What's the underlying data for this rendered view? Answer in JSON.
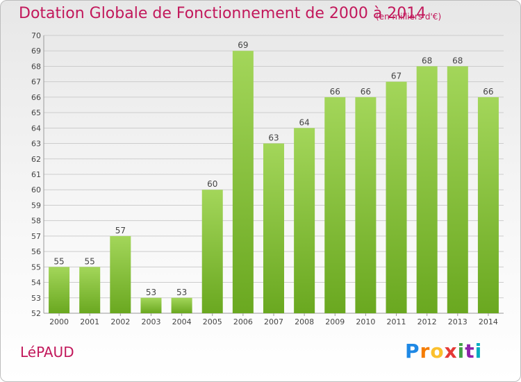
{
  "header": {
    "title": "Dotation Globale de Fonctionnement de 2000 à 2014",
    "unit": "(en milliers d'€)"
  },
  "footer": {
    "commune": "LéPAUD",
    "logo_letters": [
      "P",
      "r",
      "o",
      "x",
      "i",
      "t",
      "i"
    ]
  },
  "colors": {
    "bar_light": "#a3d65a",
    "bar_dark": "#6aa820",
    "title": "#c2185b",
    "grid": "#cccccc"
  },
  "chart_data": {
    "type": "bar",
    "title": "Dotation Globale de Fonctionnement de 2000 à 2014",
    "subtitle": "(en milliers d'€)",
    "xlabel": "",
    "ylabel": "",
    "categories": [
      "2000",
      "2001",
      "2002",
      "2003",
      "2004",
      "2005",
      "2006",
      "2007",
      "2008",
      "2009",
      "2010",
      "2011",
      "2012",
      "2013",
      "2014"
    ],
    "values": [
      55,
      55,
      57,
      53,
      53,
      60,
      69,
      63,
      64,
      66,
      66,
      67,
      68,
      68,
      66
    ],
    "ylim": [
      52,
      70
    ],
    "yticks": [
      52,
      53,
      54,
      55,
      56,
      57,
      58,
      59,
      60,
      61,
      62,
      63,
      64,
      65,
      66,
      67,
      68,
      69,
      70
    ],
    "grid": true,
    "data_labels": true
  }
}
